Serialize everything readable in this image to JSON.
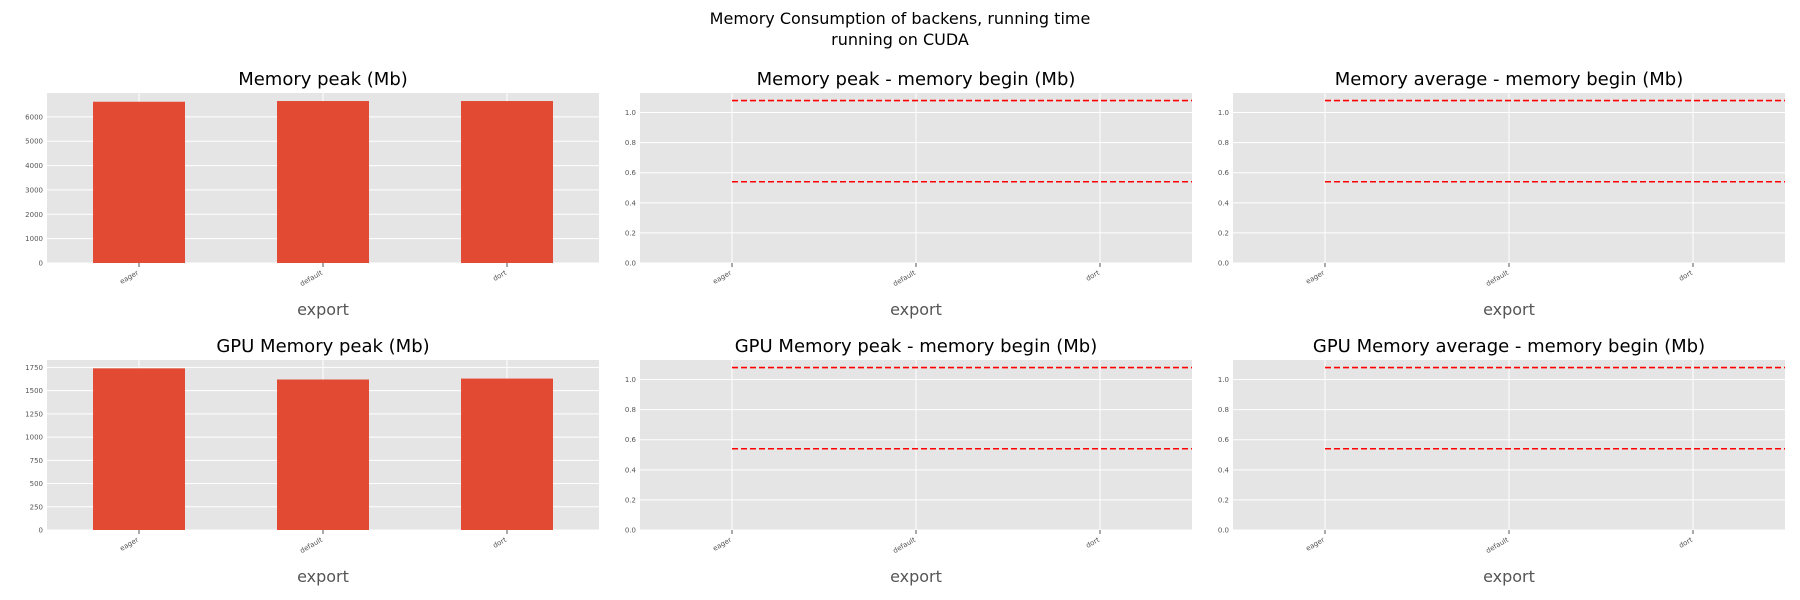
{
  "figure": {
    "suptitle_line1": "Memory Consumption of backens, running time",
    "suptitle_line2": "running on CUDA"
  },
  "colors": {
    "bar": "#E24A33",
    "panel_background": "#E5E5E5",
    "grid": "#FFFFFF",
    "reference_line": "#FF0000",
    "tick_text": "#555555",
    "title_text": "#000000"
  },
  "chart_data": [
    {
      "type": "bar",
      "title": "Memory peak (Mb)",
      "xlabel": "export",
      "categories": [
        "eager",
        "default",
        "dort"
      ],
      "values": [
        6620,
        6650,
        6650
      ],
      "ylim": [
        0,
        6980
      ],
      "yticks": [
        "0",
        "1000",
        "2000",
        "3000",
        "4000",
        "5000",
        "6000"
      ],
      "ytick_values": [
        0,
        1000,
        2000,
        3000,
        4000,
        5000,
        6000
      ],
      "grid": true
    },
    {
      "type": "bar",
      "title": "Memory peak - memory begin (Mb)",
      "xlabel": "export",
      "categories": [
        "eager",
        "default",
        "dort"
      ],
      "values": [
        0,
        0,
        0
      ],
      "ylim": [
        0,
        1.13
      ],
      "yticks": [
        "0.0",
        "0.2",
        "0.4",
        "0.6",
        "0.8",
        "1.0"
      ],
      "ytick_values": [
        0,
        0.2,
        0.4,
        0.6,
        0.8,
        1.0
      ],
      "reference_lines": [
        1.08,
        0.54
      ],
      "grid": true
    },
    {
      "type": "bar",
      "title": "Memory average - memory begin (Mb)",
      "xlabel": "export",
      "categories": [
        "eager",
        "default",
        "dort"
      ],
      "values": [
        0,
        0,
        0
      ],
      "ylim": [
        0,
        1.13
      ],
      "yticks": [
        "0.0",
        "0.2",
        "0.4",
        "0.6",
        "0.8",
        "1.0"
      ],
      "ytick_values": [
        0,
        0.2,
        0.4,
        0.6,
        0.8,
        1.0
      ],
      "reference_lines": [
        1.08,
        0.54
      ],
      "grid": true
    },
    {
      "type": "bar",
      "title": "GPU Memory peak (Mb)",
      "xlabel": "export",
      "categories": [
        "eager",
        "default",
        "dort"
      ],
      "values": [
        1740,
        1620,
        1630
      ],
      "ylim": [
        0,
        1830
      ],
      "yticks": [
        "0",
        "250",
        "500",
        "750",
        "1000",
        "1250",
        "1500",
        "1750"
      ],
      "ytick_values": [
        0,
        250,
        500,
        750,
        1000,
        1250,
        1500,
        1750
      ],
      "grid": true
    },
    {
      "type": "bar",
      "title": "GPU Memory peak - memory begin (Mb)",
      "xlabel": "export",
      "categories": [
        "eager",
        "default",
        "dort"
      ],
      "values": [
        0,
        0,
        0
      ],
      "ylim": [
        0,
        1.13
      ],
      "yticks": [
        "0.0",
        "0.2",
        "0.4",
        "0.6",
        "0.8",
        "1.0"
      ],
      "ytick_values": [
        0,
        0.2,
        0.4,
        0.6,
        0.8,
        1.0
      ],
      "reference_lines": [
        1.08,
        0.54
      ],
      "grid": true
    },
    {
      "type": "bar",
      "title": "GPU Memory average - memory begin (Mb)",
      "xlabel": "export",
      "categories": [
        "eager",
        "default",
        "dort"
      ],
      "values": [
        0,
        0,
        0
      ],
      "ylim": [
        0,
        1.13
      ],
      "yticks": [
        "0.0",
        "0.2",
        "0.4",
        "0.6",
        "0.8",
        "1.0"
      ],
      "ytick_values": [
        0,
        0.2,
        0.4,
        0.6,
        0.8,
        1.0
      ],
      "reference_lines": [
        1.08,
        0.54
      ],
      "grid": true
    }
  ]
}
